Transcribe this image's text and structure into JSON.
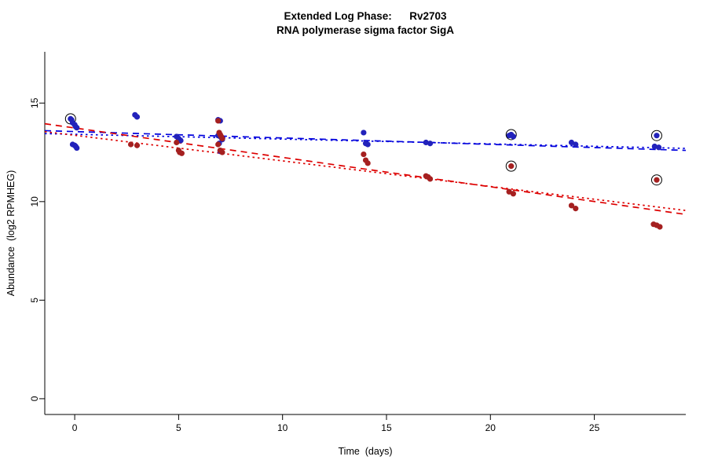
{
  "chart_data": {
    "type": "scatter",
    "title": "Extended Log Phase:      Rv2703",
    "subtitle": "RNA polymerase sigma factor SigA",
    "xlabel": "Time  (days)",
    "ylabel": "Abundance  (log2 RPMHEG)",
    "xlim": [
      -1.44,
      29.4
    ],
    "ylim": [
      -0.8,
      17.6
    ],
    "xticks": [
      0,
      5,
      10,
      15,
      20,
      25
    ],
    "yticks": [
      0,
      5,
      10,
      15
    ],
    "grid": false,
    "legend": "none",
    "colors": {
      "blue_points": "#2222BB",
      "blue_line": "#0000DD",
      "red_points": "#A52020",
      "red_line": "#DD0000",
      "selection_ring": "#000000"
    },
    "series": [
      {
        "name": "blue-series",
        "color": "#2222BB",
        "points": [
          [
            -0.2,
            14.2,
            1
          ],
          [
            -0.15,
            14.15
          ],
          [
            -0.1,
            14.0
          ],
          [
            0.0,
            13.9
          ],
          [
            0.05,
            13.8
          ],
          [
            0.1,
            13.75
          ],
          [
            -0.1,
            12.9
          ],
          [
            0.0,
            12.85
          ],
          [
            0.05,
            12.8
          ],
          [
            0.1,
            12.72
          ],
          [
            2.9,
            14.4
          ],
          [
            3.0,
            14.3
          ],
          [
            4.9,
            13.3
          ],
          [
            5.0,
            13.2
          ],
          [
            5.1,
            13.1
          ],
          [
            6.9,
            14.15
          ],
          [
            7.0,
            14.1
          ],
          [
            6.9,
            13.35
          ],
          [
            7.0,
            13.3
          ],
          [
            7.05,
            13.25
          ],
          [
            7.1,
            13.15
          ],
          [
            6.95,
            12.95
          ],
          [
            7.0,
            12.55
          ],
          [
            13.9,
            13.5
          ],
          [
            14.0,
            12.95
          ],
          [
            14.1,
            12.9
          ],
          [
            16.9,
            13.0
          ],
          [
            17.1,
            12.95
          ],
          [
            20.9,
            13.35
          ],
          [
            21.0,
            13.4,
            1
          ],
          [
            21.1,
            13.3
          ],
          [
            23.9,
            13.0
          ],
          [
            24.1,
            12.9
          ],
          [
            27.9,
            12.8
          ],
          [
            28.0,
            13.35,
            1
          ],
          [
            28.1,
            12.75
          ]
        ]
      },
      {
        "name": "red-series",
        "color": "#A52020",
        "points": [
          [
            2.7,
            12.9
          ],
          [
            3.0,
            12.85
          ],
          [
            4.9,
            13.0
          ],
          [
            5.0,
            12.6
          ],
          [
            5.05,
            12.5
          ],
          [
            5.15,
            12.45
          ],
          [
            6.9,
            14.1
          ],
          [
            6.95,
            13.5
          ],
          [
            7.0,
            13.4
          ],
          [
            7.05,
            13.3
          ],
          [
            7.1,
            13.2
          ],
          [
            6.9,
            12.9
          ],
          [
            7.0,
            12.6
          ],
          [
            7.1,
            12.5
          ],
          [
            13.9,
            12.4
          ],
          [
            14.0,
            12.1
          ],
          [
            14.1,
            11.95
          ],
          [
            16.9,
            11.3
          ],
          [
            17.0,
            11.25
          ],
          [
            17.1,
            11.15
          ],
          [
            21.0,
            11.8,
            1
          ],
          [
            20.9,
            10.5
          ],
          [
            21.1,
            10.4
          ],
          [
            23.9,
            9.8
          ],
          [
            24.1,
            9.65
          ],
          [
            28.0,
            11.1,
            1
          ],
          [
            27.85,
            8.85
          ],
          [
            28.0,
            8.8
          ],
          [
            28.15,
            8.72
          ]
        ]
      }
    ],
    "trendlines": [
      {
        "name": "blue-dashed",
        "color": "#0000DD",
        "style": "dashed",
        "x": [
          -1.44,
          29.4
        ],
        "y": [
          13.6,
          12.6
        ]
      },
      {
        "name": "blue-dotted",
        "color": "#0000DD",
        "style": "dotted",
        "x": [
          -1.44,
          29.4
        ],
        "y": [
          13.45,
          12.7
        ]
      },
      {
        "name": "red-dashed",
        "color": "#DD0000",
        "style": "dashed",
        "x": [
          -1.44,
          29.4
        ],
        "y": [
          13.95,
          9.35
        ]
      },
      {
        "name": "red-dotted",
        "color": "#DD0000",
        "style": "dotted",
        "x": [
          -1.44,
          29.4
        ],
        "y": [
          13.55,
          9.55
        ]
      }
    ]
  }
}
